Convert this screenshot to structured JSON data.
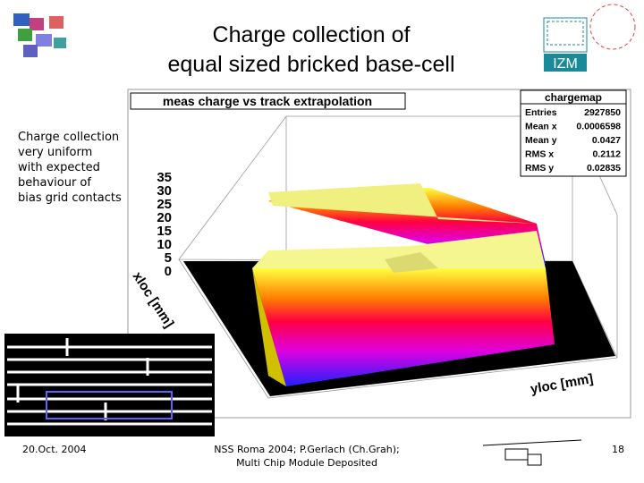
{
  "slide": {
    "title": [
      "Charge collection of",
      "equal sized bricked base-cell"
    ],
    "logo_text": "IZM",
    "side_text": [
      "Charge collection",
      "very uniform",
      "with expected",
      "behaviour of",
      "bias grid contacts"
    ],
    "plot": {
      "title": "meas charge vs track extrapolation",
      "stats": {
        "name": "chargemap",
        "rows": [
          [
            "Entries",
            "2927850"
          ],
          [
            "Mean x",
            "0.0006598"
          ],
          [
            "Mean y",
            "0.0427"
          ],
          [
            "RMS x",
            "0.2112"
          ],
          [
            "RMS y",
            "0.02835"
          ]
        ]
      },
      "z_ticks": [
        "35",
        "30",
        "25",
        "20",
        "15",
        "10",
        "5",
        "0"
      ],
      "x_label": "xloc [mm]",
      "y_label": "yloc [mm]"
    },
    "footer": {
      "date": "20.Oct. 2004",
      "center": [
        "NSS Roma 2004; P.Gerlach (Ch.Grah);",
        "Multi Chip Module Deposited"
      ],
      "page": "18"
    }
  }
}
